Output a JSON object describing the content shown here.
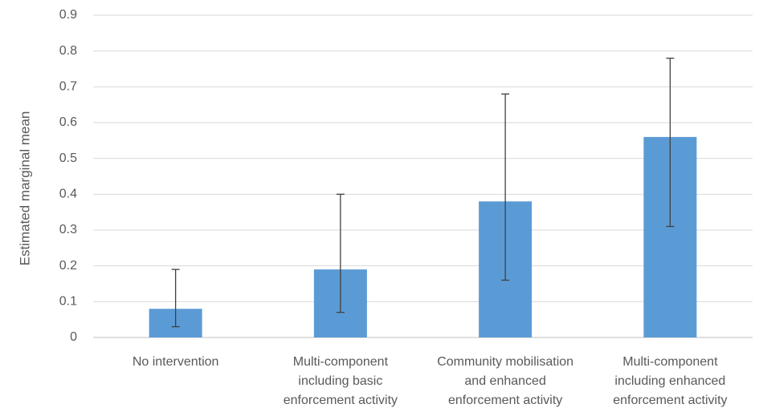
{
  "chart_data": {
    "type": "bar",
    "title": "",
    "xlabel": "",
    "ylabel": "Estimated marginal mean",
    "ylim": [
      0,
      0.9
    ],
    "yticks": [
      "0",
      "0.1",
      "0.2",
      "0.3",
      "0.4",
      "0.5",
      "0.6",
      "0.7",
      "0.8",
      "0.9"
    ],
    "grid": true,
    "legend": "none",
    "bar_color": "#5B9BD5",
    "categories": [
      [
        "No intervention"
      ],
      [
        "Multi-component",
        "including basic",
        "enforcement activity"
      ],
      [
        "Community mobilisation",
        "and enhanced",
        "enforcement activity"
      ],
      [
        "Multi-component",
        "including enhanced",
        "enforcement activity"
      ]
    ],
    "values": [
      0.08,
      0.19,
      0.38,
      0.56
    ],
    "error_low": [
      0.03,
      0.07,
      0.16,
      0.31
    ],
    "error_high": [
      0.19,
      0.4,
      0.68,
      0.78
    ]
  }
}
